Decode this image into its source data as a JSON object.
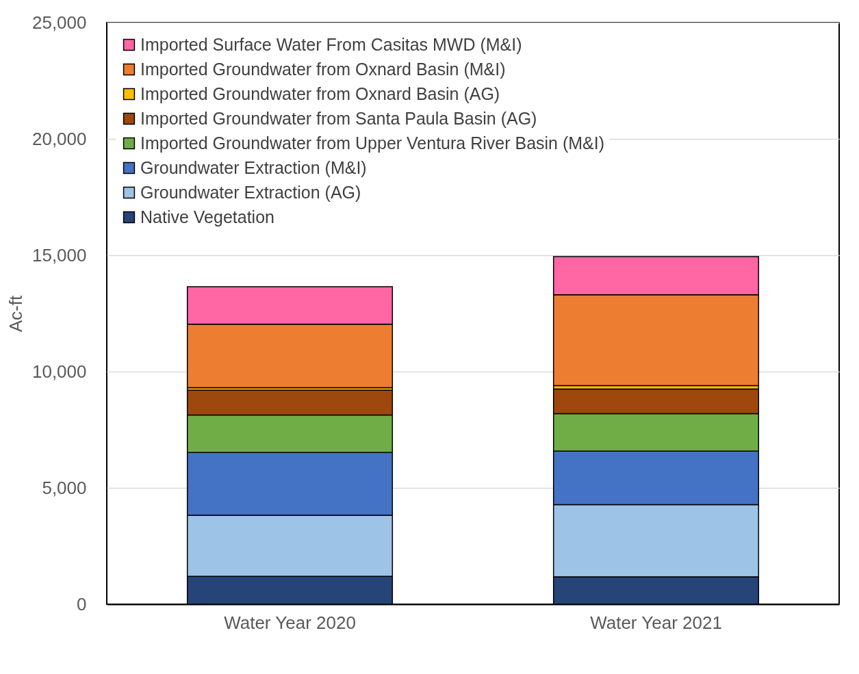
{
  "chart_data": {
    "type": "bar",
    "stacked": true,
    "ylabel": "Ac-ft",
    "categories": [
      "Water Year 2020",
      "Water Year 2021"
    ],
    "series": [
      {
        "name": "Native Vegetation",
        "color": "#264478",
        "values": [
          1200,
          1180
        ]
      },
      {
        "name": "Groundwater Extraction (AG)",
        "color": "#9dc3e6",
        "values": [
          2620,
          3100
        ]
      },
      {
        "name": "Groundwater Extraction (M&I)",
        "color": "#4472c4",
        "values": [
          2700,
          2300
        ]
      },
      {
        "name": "Imported Groundwater from Upper Ventura River Basin (M&I)",
        "color": "#70ad47",
        "values": [
          1610,
          1610
        ]
      },
      {
        "name": "Imported Groundwater from Santa Paula Basin (AG)",
        "color": "#9e480e",
        "values": [
          1070,
          1060
        ]
      },
      {
        "name": "Imported Groundwater from Oxnard Basin (AG)",
        "color": "#ffc000",
        "values": [
          110,
          150
        ]
      },
      {
        "name": "Imported Groundwater from Oxnard Basin (M&I)",
        "color": "#ed7d31",
        "values": [
          2730,
          3900
        ]
      },
      {
        "name": "Imported Surface Water From Casitas MWD (M&I)",
        "color": "#ff66a3",
        "values": [
          1610,
          1640
        ]
      }
    ],
    "ylim": [
      0,
      25000
    ],
    "yticks": [
      {
        "value": 0,
        "label": "0"
      },
      {
        "value": 5000,
        "label": "5,000"
      },
      {
        "value": 10000,
        "label": "10,000"
      },
      {
        "value": 15000,
        "label": "15,000"
      },
      {
        "value": 20000,
        "label": "20,000"
      },
      {
        "value": 25000,
        "label": "25,000"
      }
    ],
    "grid": "y",
    "legend": "top left"
  }
}
